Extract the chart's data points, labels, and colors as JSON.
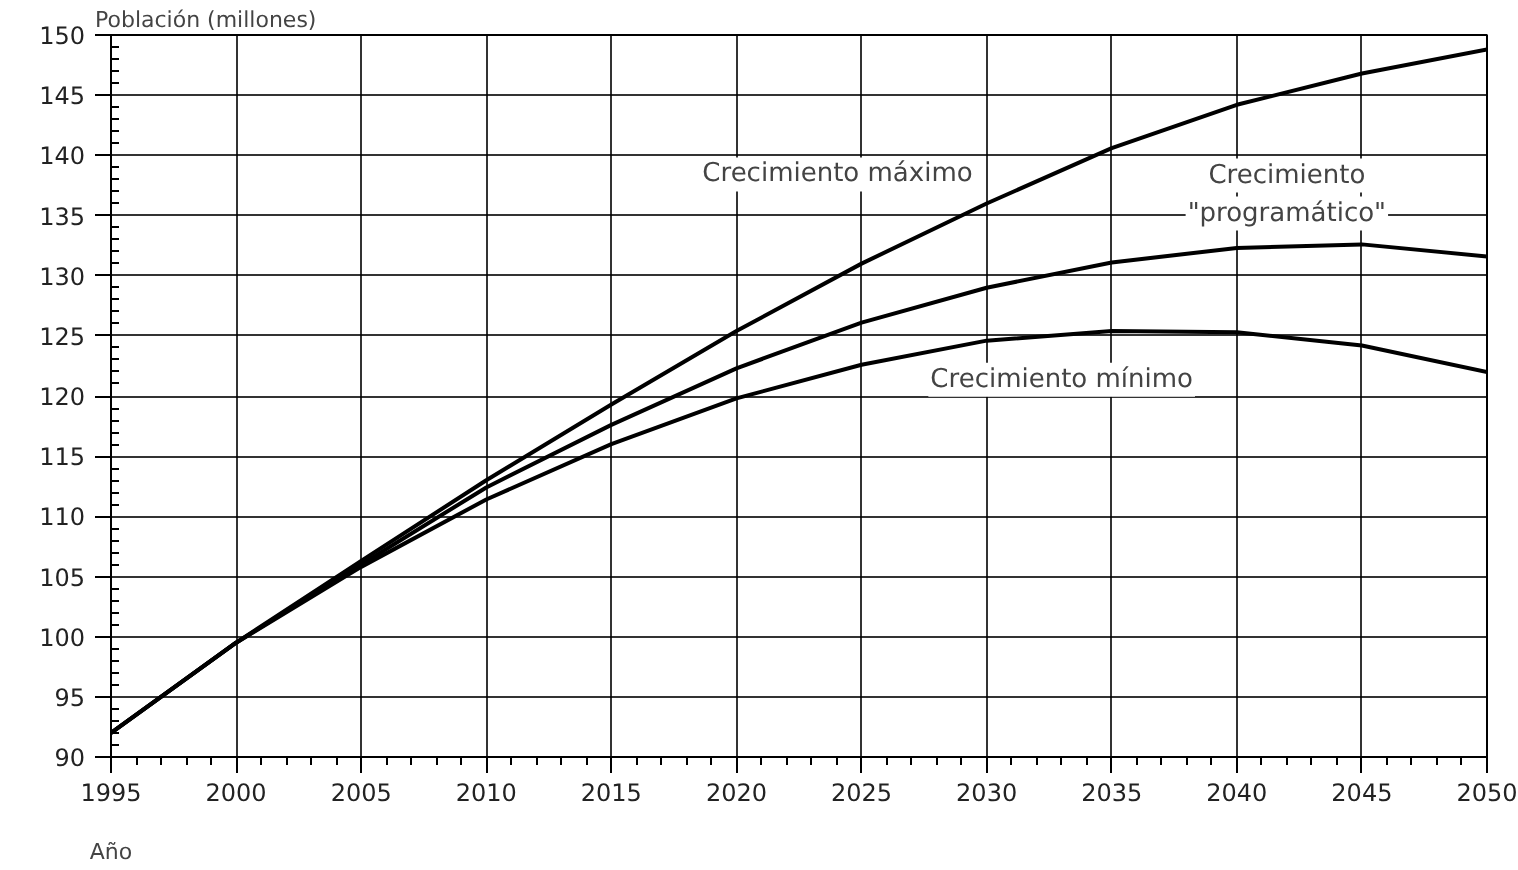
{
  "chart_data": {
    "type": "line",
    "ylabel": "Población (millones)",
    "xlabel": "Año",
    "x": [
      1995,
      2000,
      2005,
      2010,
      2015,
      2020,
      2025,
      2030,
      2035,
      2040,
      2045,
      2050
    ],
    "series": [
      {
        "name": "Crecimiento máximo",
        "color": "#000000",
        "values": [
          92,
          99.5,
          106.3,
          113,
          119.3,
          125.4,
          131,
          136,
          140.6,
          144.2,
          146.8,
          148.8
        ]
      },
      {
        "name": "Crecimiento\n\"programático\"",
        "color": "#000000",
        "values": [
          92,
          99.5,
          106,
          112.4,
          117.6,
          122.3,
          126.1,
          129,
          131.1,
          132.3,
          132.6,
          131.6
        ]
      },
      {
        "name": "Crecimiento mínimo",
        "color": "#000000",
        "values": [
          92,
          99.5,
          105.8,
          111.4,
          116,
          119.8,
          122.6,
          124.6,
          125.4,
          125.3,
          124.2,
          122
        ]
      }
    ],
    "xlim": [
      1995,
      2050
    ],
    "xticks": [
      1995,
      2000,
      2005,
      2010,
      2015,
      2020,
      2025,
      2030,
      2035,
      2040,
      2045,
      2050
    ],
    "ylim": [
      90,
      150
    ],
    "yticks": [
      90,
      95,
      100,
      105,
      110,
      115,
      120,
      125,
      130,
      135,
      140,
      145,
      150
    ],
    "grid": true,
    "marker": "none",
    "line_style": "solid"
  }
}
